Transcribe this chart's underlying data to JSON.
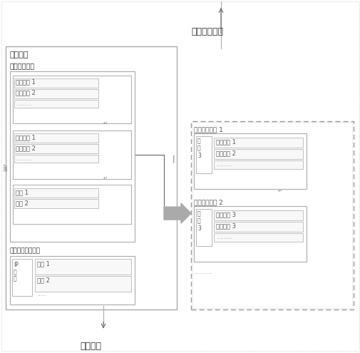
{
  "title_top": "同步消息响应",
  "title_bottom": "同步消息",
  "main_box_label": "告警装置",
  "realtime_label": "实时告警缓存",
  "strategy_label": "告警订阅策略列表",
  "left_side_label": "ser",
  "group1_line1": "超时告警 1",
  "group1_line2": "超时告警 2",
  "group2_line1": "同步告警 1",
  "group2_line2": "同步告警 2",
  "group3_line1": "告警 1",
  "group3_line2": "告警 2",
  "strat_ip": "IP",
  "strat_duan": "端",
  "strat_kou": "口",
  "strat_res1": "资源 1",
  "strat_res2": "资源 2",
  "sync1_title": "同步告警列表 1",
  "sync1_res": "资\n源\n3",
  "sync1_line1": "同步告警 1",
  "sync1_line2": "同步告警 2",
  "sync2_title": "同步告警列表 2",
  "sync2_res": "资\n源\n3",
  "sync2_line1": "同步告警 3",
  "sync2_line2": "同步告警 3",
  "dots": "………",
  "bg_color": "#ffffff",
  "border_gray": "#aaaaaa",
  "dark_gray": "#666666",
  "light_gray": "#cccccc",
  "text_dark": "#333333",
  "text_mid": "#555555",
  "text_light": "#888888",
  "box_fill": "#f8f8f8"
}
